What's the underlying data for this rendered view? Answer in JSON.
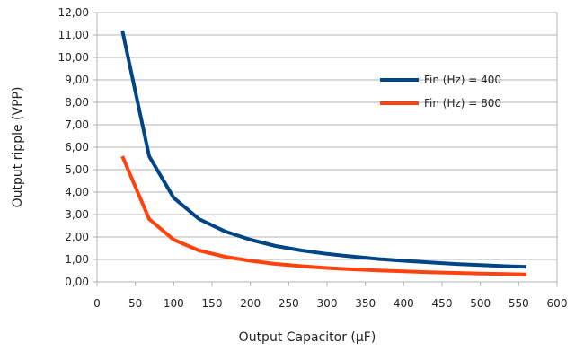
{
  "chart_data": {
    "type": "line",
    "title": "",
    "xlabel": "Output Capacitor (µF)",
    "ylabel": "Output ripple (VPP)",
    "xlim": [
      0,
      600
    ],
    "ylim": [
      0,
      12
    ],
    "xticks": [
      0,
      50,
      100,
      150,
      200,
      250,
      300,
      350,
      400,
      450,
      500,
      550,
      600
    ],
    "xtick_labels": [
      "0",
      "50",
      "100",
      "150",
      "200",
      "250",
      "300",
      "350",
      "400",
      "450",
      "500",
      "550",
      "600"
    ],
    "yticks": [
      0,
      1,
      2,
      3,
      4,
      5,
      6,
      7,
      8,
      9,
      10,
      11,
      12
    ],
    "ytick_labels": [
      "0,00",
      "1,00",
      "2,00",
      "3,00",
      "4,00",
      "5,00",
      "6,00",
      "7,00",
      "8,00",
      "9,00",
      "10,00",
      "11,00",
      "12,00"
    ],
    "grid": true,
    "legend_position": "right, upper",
    "series": [
      {
        "name": "Fin (Hz) = 400",
        "color": "#004586",
        "x": [
          33,
          68,
          100,
          133,
          167,
          200,
          233,
          267,
          300,
          333,
          367,
          400,
          433,
          467,
          500,
          533,
          560
        ],
        "y": [
          11.2,
          5.6,
          3.75,
          2.8,
          2.25,
          1.88,
          1.6,
          1.4,
          1.25,
          1.13,
          1.02,
          0.94,
          0.87,
          0.8,
          0.75,
          0.7,
          0.67
        ]
      },
      {
        "name": "Fin (Hz) = 800",
        "color": "#ff420e",
        "x": [
          33,
          68,
          100,
          133,
          167,
          200,
          233,
          267,
          300,
          333,
          367,
          400,
          433,
          467,
          500,
          533,
          560
        ],
        "y": [
          5.6,
          2.8,
          1.88,
          1.4,
          1.12,
          0.94,
          0.8,
          0.7,
          0.62,
          0.56,
          0.51,
          0.47,
          0.43,
          0.4,
          0.37,
          0.35,
          0.33
        ]
      }
    ]
  }
}
